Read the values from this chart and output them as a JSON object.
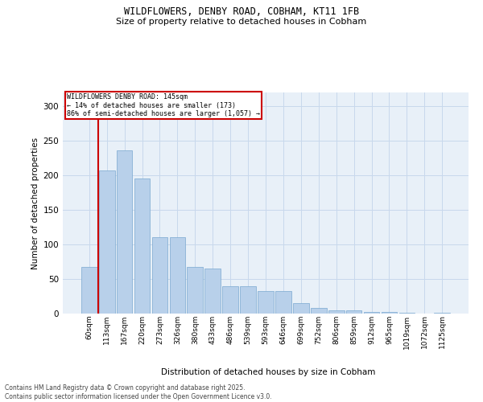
{
  "title1": "WILDFLOWERS, DENBY ROAD, COBHAM, KT11 1FB",
  "title2": "Size of property relative to detached houses in Cobham",
  "xlabel": "Distribution of detached houses by size in Cobham",
  "ylabel": "Number of detached properties",
  "categories": [
    "60sqm",
    "113sqm",
    "167sqm",
    "220sqm",
    "273sqm",
    "326sqm",
    "380sqm",
    "433sqm",
    "486sqm",
    "539sqm",
    "593sqm",
    "646sqm",
    "699sqm",
    "752sqm",
    "806sqm",
    "859sqm",
    "912sqm",
    "965sqm",
    "1019sqm",
    "1072sqm",
    "1125sqm"
  ],
  "values": [
    67,
    207,
    236,
    195,
    110,
    110,
    68,
    65,
    40,
    40,
    33,
    33,
    15,
    8,
    5,
    5,
    2,
    2,
    1,
    0,
    1
  ],
  "bar_color": "#b8d0ea",
  "bar_edge_color": "#7aa8d0",
  "vline_color": "#cc0000",
  "vline_x": 0.5,
  "annotation_label": "WILDFLOWERS DENBY ROAD: 145sqm",
  "annotation_line2": "← 14% of detached houses are smaller (173)",
  "annotation_line3": "86% of semi-detached houses are larger (1,057) →",
  "annotation_box_color": "#cc0000",
  "ylim": [
    0,
    320
  ],
  "yticks": [
    0,
    50,
    100,
    150,
    200,
    250,
    300
  ],
  "grid_color": "#c8d8ec",
  "bg_color": "#e8f0f8",
  "footer1": "Contains HM Land Registry data © Crown copyright and database right 2025.",
  "footer2": "Contains public sector information licensed under the Open Government Licence v3.0."
}
